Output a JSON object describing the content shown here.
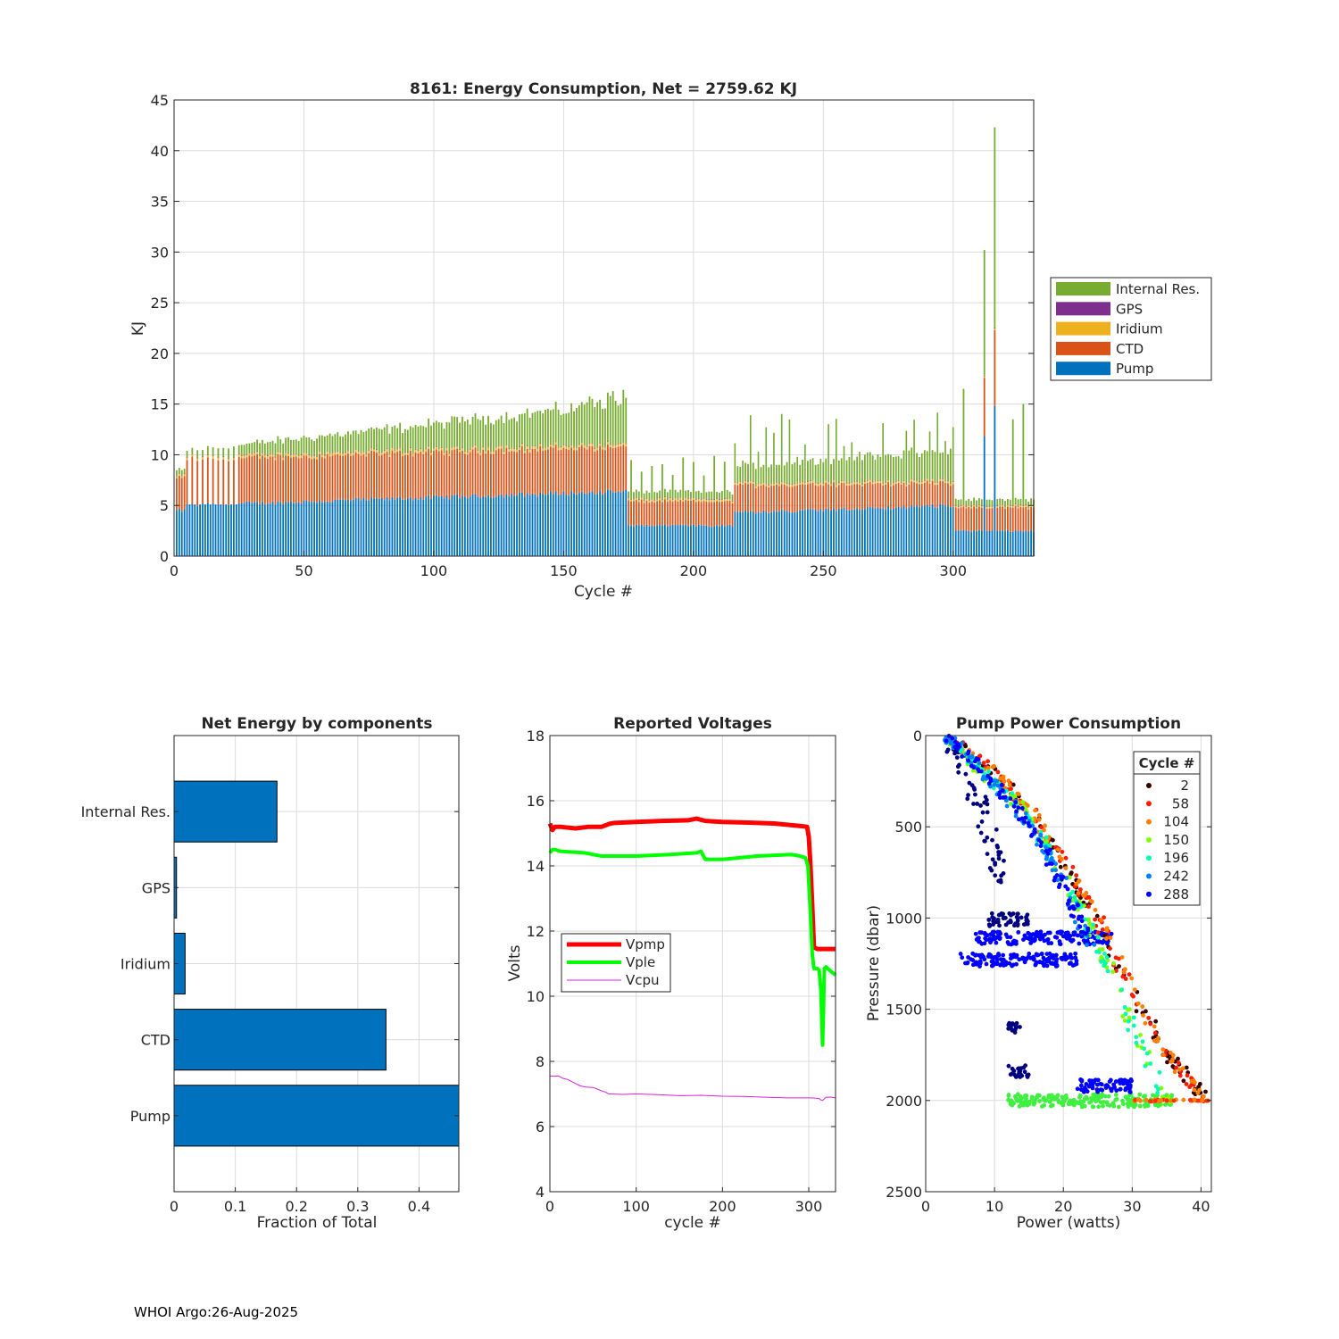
{
  "footer": "WHOI Argo:26-Aug-2025",
  "chart_data": [
    {
      "id": "energy",
      "type": "bar",
      "stacked": true,
      "title": "8161: Energy Consumption,  Net = 2759.62 KJ",
      "xlabel": "Cycle #",
      "ylabel": "KJ",
      "xlim": [
        0,
        331
      ],
      "ylim": [
        0,
        45
      ],
      "xticks": [
        0,
        50,
        100,
        150,
        200,
        250,
        300
      ],
      "yticks": [
        0,
        5,
        10,
        15,
        20,
        25,
        30,
        35,
        40,
        45
      ],
      "grid": true,
      "legend_position": "right",
      "series": [
        {
          "name": "Internal Res.",
          "color": "#77ac30"
        },
        {
          "name": "GPS",
          "color": "#7e2f8e"
        },
        {
          "name": "Iridium",
          "color": "#edb120"
        },
        {
          "name": "CTD",
          "color": "#d95319"
        },
        {
          "name": "Pump",
          "color": "#0072bd"
        }
      ],
      "profile_by_cycle_range": [
        {
          "from": 1,
          "to": 4,
          "pump": 4.5,
          "ctd": 3.2,
          "iridium": 0.2,
          "gps": 0.05,
          "internal": 0.5
        },
        {
          "from": 5,
          "to": 174,
          "pump": [
            5.0,
            6.4
          ],
          "ctd": [
            4.5,
            4.4
          ],
          "iridium": 0.25,
          "gps": 0.05,
          "internal": [
            0.6,
            4.0
          ]
        },
        {
          "from": 175,
          "to": 215,
          "pump": 3.0,
          "ctd": 2.4,
          "iridium": 0.2,
          "gps": 0.05,
          "internal": 0.7
        },
        {
          "from": 216,
          "to": 300,
          "pump": [
            4.3,
            5.0
          ],
          "ctd": [
            2.7,
            2.2
          ],
          "iridium": 0.2,
          "gps": 0.05,
          "internal": [
            1.5,
            3.0
          ]
        },
        {
          "from": 301,
          "to": 331,
          "pump": 2.5,
          "ctd": 2.3,
          "iridium": 0.15,
          "gps": 0.05,
          "internal": 0.6
        }
      ],
      "spikes": [
        {
          "cycle": 304,
          "total": 16.5
        },
        {
          "cycle": 312,
          "pump": 11.8,
          "ctd": 5.8,
          "total": 30.2
        },
        {
          "cycle": 316,
          "pump": 14.8,
          "ctd": 7.5,
          "total": 42.3
        },
        {
          "cycle": 323,
          "total": 13.5
        },
        {
          "cycle": 327,
          "total": 15.0
        }
      ]
    },
    {
      "id": "net",
      "type": "barh",
      "title": "Net Energy by components",
      "xlabel": "Fraction of Total",
      "xlim": [
        0,
        0.465
      ],
      "xticks": [
        0,
        0.1,
        0.2,
        0.3,
        0.4
      ],
      "xtick_labels": [
        "0",
        "0.1",
        "0.2",
        "0.3",
        "0.4"
      ],
      "categories": [
        "Internal Res.",
        "GPS",
        "Iridium",
        "CTD",
        "Pump"
      ],
      "values": [
        0.168,
        0.004,
        0.018,
        0.346,
        0.465
      ],
      "color": "#0072bd"
    },
    {
      "id": "volts",
      "type": "line",
      "title": "Reported Voltages",
      "xlabel": "cycle #",
      "ylabel": "Volts",
      "xlim": [
        0,
        331
      ],
      "ylim": [
        4,
        18
      ],
      "xticks": [
        0,
        100,
        200,
        300
      ],
      "yticks": [
        4,
        6,
        8,
        10,
        12,
        14,
        16,
        18
      ],
      "legend_position": "middle-left",
      "series": [
        {
          "name": "Vpmp",
          "color": "#ff0000",
          "width": 5,
          "x": [
            0,
            3,
            6,
            12,
            30,
            45,
            60,
            70,
            75,
            100,
            130,
            160,
            170,
            180,
            200,
            230,
            260,
            280,
            292,
            298,
            300,
            302,
            304,
            306,
            310,
            331
          ],
          "y": [
            15.3,
            15.1,
            15.2,
            15.2,
            15.15,
            15.2,
            15.2,
            15.3,
            15.32,
            15.35,
            15.38,
            15.4,
            15.45,
            15.38,
            15.35,
            15.33,
            15.3,
            15.25,
            15.22,
            15.2,
            14.9,
            14.0,
            12.8,
            11.5,
            11.45,
            11.45
          ]
        },
        {
          "name": "Vple",
          "color": "#00ff00",
          "width": 4,
          "x": [
            0,
            3,
            6,
            12,
            40,
            60,
            100,
            140,
            170,
            175,
            180,
            200,
            240,
            280,
            290,
            296,
            299,
            300,
            302,
            304,
            306,
            310,
            312,
            314,
            316,
            317,
            318,
            320,
            324,
            331
          ],
          "y": [
            14.4,
            14.5,
            14.5,
            14.45,
            14.4,
            14.3,
            14.3,
            14.35,
            14.4,
            14.45,
            14.2,
            14.2,
            14.3,
            14.35,
            14.3,
            14.25,
            14.0,
            13.5,
            12.5,
            11.3,
            10.85,
            10.85,
            10.8,
            10.2,
            8.5,
            9.5,
            10.85,
            10.9,
            10.8,
            10.65
          ]
        },
        {
          "name": "Vcpu",
          "color": "#e020e0",
          "width": 1,
          "x": [
            0,
            10,
            20,
            35,
            50,
            65,
            70,
            100,
            150,
            200,
            250,
            300,
            312,
            316,
            320,
            331
          ],
          "y": [
            7.55,
            7.55,
            7.45,
            7.25,
            7.2,
            7.05,
            7.0,
            7.0,
            6.95,
            6.93,
            6.9,
            6.88,
            6.86,
            6.8,
            6.9,
            6.88
          ]
        }
      ]
    },
    {
      "id": "pump",
      "type": "scatter",
      "title": "Pump Power Consumption",
      "xlabel": "Power (watts)",
      "ylabel": "Pressure (dbar)",
      "xlim": [
        0,
        41.5
      ],
      "ylim": [
        0,
        2500
      ],
      "y_reversed": true,
      "xticks": [
        0,
        10,
        20,
        30,
        40
      ],
      "yticks": [
        0,
        500,
        1000,
        1500,
        2000,
        2500
      ],
      "legend_title": "Cycle #",
      "legend_position": "top-right",
      "series": [
        {
          "name": "2",
          "color": "#800000",
          "marker_color": "#3a0000",
          "profile": "descent_main"
        },
        {
          "name": "58",
          "color": "#ff1a00",
          "profile": "descent_main"
        },
        {
          "name": "104",
          "color": "#ff7f00",
          "profile": "descent_main"
        },
        {
          "name": "150",
          "color": "#7fff00",
          "profile": "descent_mid"
        },
        {
          "name": "196",
          "color": "#00ffb0",
          "profile": "descent_mid"
        },
        {
          "name": "242",
          "color": "#0080ff",
          "profile": "descent_inner"
        },
        {
          "name": "288",
          "color": "#0000ff",
          "profile": "descent_inner"
        }
      ],
      "dark_series_color": "#000080",
      "profiles": {
        "descent_main": [
          [
            3,
            0
          ],
          [
            10,
            200
          ],
          [
            15,
            400
          ],
          [
            20,
            700
          ],
          [
            25,
            1000
          ],
          [
            30,
            1400
          ],
          [
            35,
            1750
          ],
          [
            41,
            2000
          ]
        ],
        "descent_mid": [
          [
            3,
            0
          ],
          [
            8,
            200
          ],
          [
            14,
            400
          ],
          [
            19,
            700
          ],
          [
            23,
            1000
          ],
          [
            27,
            1300
          ],
          [
            30,
            1600
          ],
          [
            35,
            2000
          ]
        ],
        "descent_inner": [
          [
            3,
            0
          ],
          [
            7,
            150
          ],
          [
            12,
            350
          ],
          [
            17,
            600
          ],
          [
            21,
            900
          ],
          [
            24,
            1150
          ]
        ]
      },
      "clusters": [
        {
          "x": [
            7,
            27
          ],
          "y": 1110,
          "color": "#0000ff"
        },
        {
          "x": [
            5,
            22
          ],
          "y": 1230,
          "color": "#0000ff"
        },
        {
          "x": [
            9,
            15
          ],
          "y": 1010,
          "color": "#000080"
        },
        {
          "x": [
            12,
            14
          ],
          "y": 1600,
          "color": "#000080"
        },
        {
          "x": [
            12,
            15
          ],
          "y": 1840,
          "color": "#000080"
        },
        {
          "x": [
            12,
            36
          ],
          "y": 2000,
          "color": "#40f040"
        },
        {
          "x": [
            22,
            30
          ],
          "y": 1920,
          "color": "#0000ff"
        }
      ]
    }
  ]
}
